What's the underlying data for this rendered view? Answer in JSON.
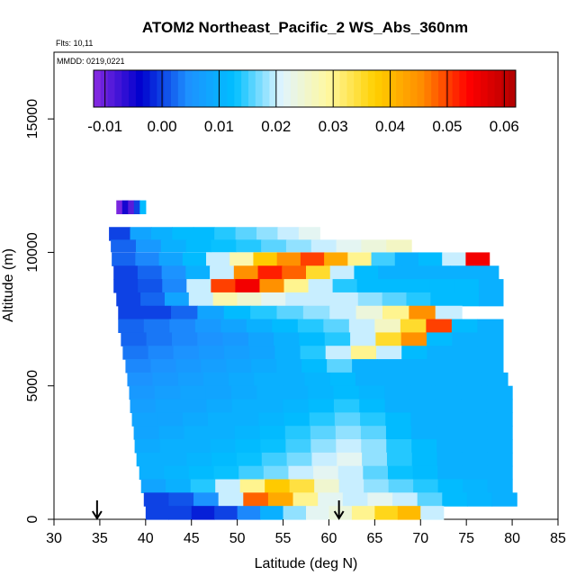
{
  "chart_data": {
    "type": "heatmap",
    "title": "ATOM2 Northeast_Pacific_2 WS_Abs_360nm",
    "flights_label": "Flts: 10,11",
    "mmdd_label": "MMDD: 0219,0221",
    "xlabel": "Latitude (deg N)",
    "ylabel": "Altitude (m)",
    "xlim": [
      30,
      85
    ],
    "ylim": [
      0,
      17500
    ],
    "xticks": [
      "30",
      "35",
      "40",
      "45",
      "50",
      "55",
      "60",
      "65",
      "70",
      "75",
      "80",
      "85"
    ],
    "xtick_values": [
      30,
      35,
      40,
      45,
      50,
      55,
      60,
      65,
      70,
      75,
      80,
      85
    ],
    "yticks": [
      "0",
      "5000",
      "10000",
      "15000"
    ],
    "ytick_values": [
      0,
      5000,
      10000,
      15000
    ],
    "colorbar": {
      "range": [
        -0.012,
        0.062
      ],
      "ticks": [
        "-0.01",
        "0.00",
        "0.01",
        "0.02",
        "0.03",
        "0.04",
        "0.05",
        "0.06"
      ],
      "tick_values": [
        -0.01,
        0.0,
        0.01,
        0.02,
        0.03,
        0.04,
        0.05,
        0.06
      ],
      "colors": [
        "#8a2be2",
        "#0000cd",
        "#1e90ff",
        "#00bfff",
        "#e0f4ff",
        "#fff8a0",
        "#ffd000",
        "#ff8c00",
        "#ff0000",
        "#b00000"
      ]
    },
    "markers": {
      "latitudes": [
        34.7,
        61.1
      ],
      "symbol": "down-arrow"
    },
    "rows": [
      {
        "alt": 11700,
        "height": 500,
        "lat_start": 36.8,
        "lat_end": 40.0,
        "values": [
          -0.011,
          -0.005,
          -0.009,
          0.0,
          0.012
        ]
      },
      {
        "alt": 10700,
        "height": 500,
        "lat_start": 36.0,
        "lat_end": 59.0,
        "values": [
          0.0,
          0.008,
          0.01,
          0.012,
          0.012,
          0.014,
          0.016,
          0.018,
          0.02,
          0.022
        ]
      },
      {
        "alt": 10250,
        "height": 450,
        "lat_start": 36.2,
        "lat_end": 69.0,
        "values": [
          0.002,
          0.006,
          0.01,
          0.012,
          0.013,
          0.014,
          0.016,
          0.018,
          0.02,
          0.022,
          0.024,
          0.026
        ]
      },
      {
        "alt": 9750,
        "height": 500,
        "lat_start": 36.3,
        "lat_end": 77.5,
        "values": [
          0.002,
          0.004,
          0.008,
          0.012,
          0.02,
          0.028,
          0.038,
          0.045,
          0.05,
          0.042,
          0.03,
          0.015,
          0.01,
          0.012,
          0.02,
          0.055
        ]
      },
      {
        "alt": 9250,
        "height": 500,
        "lat_start": 36.5,
        "lat_end": 78.5,
        "values": [
          0.0,
          0.002,
          0.005,
          0.01,
          0.02,
          0.045,
          0.052,
          0.048,
          0.035,
          0.02,
          0.012,
          0.01,
          0.01,
          0.01,
          0.01,
          0.01
        ]
      },
      {
        "alt": 8750,
        "height": 500,
        "lat_start": 36.5,
        "lat_end": 79.0,
        "values": [
          0.0,
          0.001,
          0.004,
          0.02,
          0.05,
          0.055,
          0.045,
          0.03,
          0.02,
          0.014,
          0.012,
          0.012,
          0.012,
          0.012,
          0.012,
          0.01
        ]
      },
      {
        "alt": 8250,
        "height": 500,
        "lat_start": 36.8,
        "lat_end": 79.0,
        "values": [
          0.0,
          0.002,
          0.008,
          0.02,
          0.028,
          0.025,
          0.022,
          0.02,
          0.02,
          0.02,
          0.018,
          0.016,
          0.014,
          0.012,
          0.012,
          0.01
        ]
      },
      {
        "alt": 7750,
        "height": 500,
        "lat_start": 37.0,
        "lat_end": 74.5,
        "values": [
          0.0,
          0.0,
          0.002,
          0.008,
          0.012,
          0.014,
          0.016,
          0.018,
          0.02,
          0.024,
          0.03,
          0.045,
          0.02
        ]
      },
      {
        "alt": 7250,
        "height": 500,
        "lat_start": 37.0,
        "lat_end": 79.0,
        "values": [
          0.002,
          0.003,
          0.004,
          0.006,
          0.008,
          0.01,
          0.012,
          0.014,
          0.016,
          0.02,
          0.026,
          0.035,
          0.05,
          0.012,
          0.01
        ]
      },
      {
        "alt": 6750,
        "height": 500,
        "lat_start": 37.3,
        "lat_end": 79.0,
        "values": [
          0.002,
          0.003,
          0.004,
          0.005,
          0.006,
          0.008,
          0.01,
          0.012,
          0.014,
          0.02,
          0.035,
          0.045,
          0.012,
          0.01,
          0.01
        ]
      },
      {
        "alt": 6250,
        "height": 500,
        "lat_start": 37.5,
        "lat_end": 79.0,
        "values": [
          0.003,
          0.004,
          0.005,
          0.006,
          0.007,
          0.008,
          0.01,
          0.014,
          0.02,
          0.03,
          0.02,
          0.012,
          0.01,
          0.01,
          0.01
        ]
      },
      {
        "alt": 5750,
        "height": 500,
        "lat_start": 37.8,
        "lat_end": 79.0,
        "values": [
          0.004,
          0.005,
          0.006,
          0.007,
          0.008,
          0.009,
          0.01,
          0.012,
          0.016,
          0.01,
          0.01,
          0.01,
          0.01,
          0.01,
          0.01
        ]
      },
      {
        "alt": 5250,
        "height": 500,
        "lat_start": 38.0,
        "lat_end": 79.5,
        "values": [
          0.005,
          0.006,
          0.007,
          0.008,
          0.009,
          0.01,
          0.01,
          0.011,
          0.012,
          0.01,
          0.01,
          0.01,
          0.01,
          0.01,
          0.01
        ]
      },
      {
        "alt": 4750,
        "height": 500,
        "lat_start": 38.2,
        "lat_end": 80.0,
        "values": [
          0.006,
          0.007,
          0.008,
          0.008,
          0.009,
          0.01,
          0.01,
          0.011,
          0.012,
          0.011,
          0.01,
          0.01,
          0.01,
          0.01,
          0.01
        ]
      },
      {
        "alt": 4250,
        "height": 500,
        "lat_start": 38.3,
        "lat_end": 80.0,
        "values": [
          0.007,
          0.008,
          0.008,
          0.009,
          0.01,
          0.01,
          0.011,
          0.012,
          0.014,
          0.012,
          0.01,
          0.01,
          0.01,
          0.01,
          0.01
        ]
      },
      {
        "alt": 3750,
        "height": 500,
        "lat_start": 38.5,
        "lat_end": 80.0,
        "values": [
          0.008,
          0.008,
          0.009,
          0.01,
          0.01,
          0.011,
          0.012,
          0.014,
          0.016,
          0.014,
          0.012,
          0.01,
          0.01,
          0.01,
          0.01
        ]
      },
      {
        "alt": 3250,
        "height": 500,
        "lat_start": 38.7,
        "lat_end": 80.0,
        "values": [
          0.008,
          0.009,
          0.01,
          0.01,
          0.011,
          0.012,
          0.014,
          0.016,
          0.018,
          0.016,
          0.012,
          0.01,
          0.01,
          0.01,
          0.01
        ]
      },
      {
        "alt": 2750,
        "height": 500,
        "lat_start": 38.8,
        "lat_end": 80.0,
        "values": [
          0.009,
          0.01,
          0.01,
          0.011,
          0.012,
          0.013,
          0.015,
          0.018,
          0.02,
          0.018,
          0.014,
          0.012,
          0.01,
          0.01,
          0.01
        ]
      },
      {
        "alt": 2250,
        "height": 500,
        "lat_start": 39.0,
        "lat_end": 80.0,
        "values": [
          0.01,
          0.01,
          0.011,
          0.012,
          0.013,
          0.015,
          0.017,
          0.02,
          0.022,
          0.018,
          0.014,
          0.012,
          0.01,
          0.01,
          0.01
        ]
      },
      {
        "alt": 1750,
        "height": 500,
        "lat_start": 39.3,
        "lat_end": 80.0,
        "values": [
          0.01,
          0.011,
          0.012,
          0.013,
          0.015,
          0.017,
          0.02,
          0.022,
          0.02,
          0.016,
          0.013,
          0.012,
          0.01,
          0.01,
          0.01
        ]
      },
      {
        "alt": 1250,
        "height": 500,
        "lat_start": 39.5,
        "lat_end": 80.0,
        "values": [
          0.008,
          0.01,
          0.014,
          0.02,
          0.03,
          0.038,
          0.034,
          0.025,
          0.02,
          0.018,
          0.016,
          0.014,
          0.012,
          0.011,
          0.01
        ]
      },
      {
        "alt": 750,
        "height": 500,
        "lat_start": 39.8,
        "lat_end": 80.5,
        "values": [
          0.0,
          0.001,
          0.005,
          0.02,
          0.048,
          0.042,
          0.03,
          0.022,
          0.02,
          0.022,
          0.02,
          0.016,
          0.012,
          0.011,
          0.01
        ]
      },
      {
        "alt": 250,
        "height": 500,
        "lat_start": 40.0,
        "lat_end": 72.5,
        "values": [
          0.0,
          0.0,
          -0.002,
          0.0,
          0.004,
          0.01,
          0.018,
          0.022,
          0.024,
          0.03,
          0.036,
          0.04,
          0.02
        ]
      }
    ]
  }
}
